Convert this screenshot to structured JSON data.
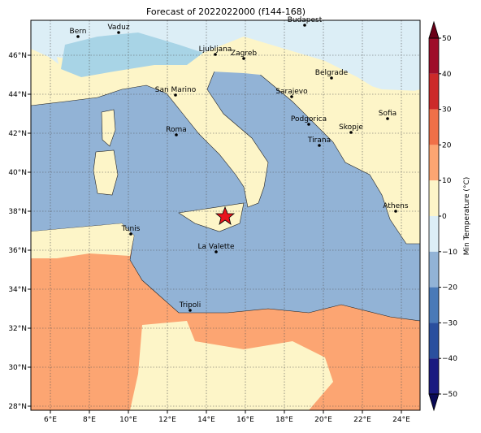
{
  "title": "Forecast of 2022022000 (f144-168)",
  "lon_ticks": [
    "6°E",
    "8°E",
    "10°E",
    "12°E",
    "14°E",
    "16°E",
    "18°E",
    "20°E",
    "22°E",
    "24°E"
  ],
  "lat_ticks": [
    "46°N",
    "44°N",
    "42°N",
    "40°N",
    "38°N",
    "36°N",
    "34°N",
    "32°N",
    "30°N",
    "28°N"
  ],
  "cities": [
    "Bern",
    "Vaduz",
    "Budapest",
    "Ljubljana",
    "Zagreb",
    "Belgrade",
    "San Marino",
    "Sarajevo",
    "Sofia",
    "Podgorica",
    "Skopje",
    "Roma",
    "Tirana",
    "Athens",
    "Tunis",
    "La Valette",
    "Tripoli"
  ],
  "colorbar": {
    "label": "Min Temperature (°C)",
    "ticks": [
      "50",
      "40",
      "30",
      "20",
      "10",
      "0",
      "−10",
      "−20",
      "−30",
      "−40",
      "−50"
    ]
  }
}
